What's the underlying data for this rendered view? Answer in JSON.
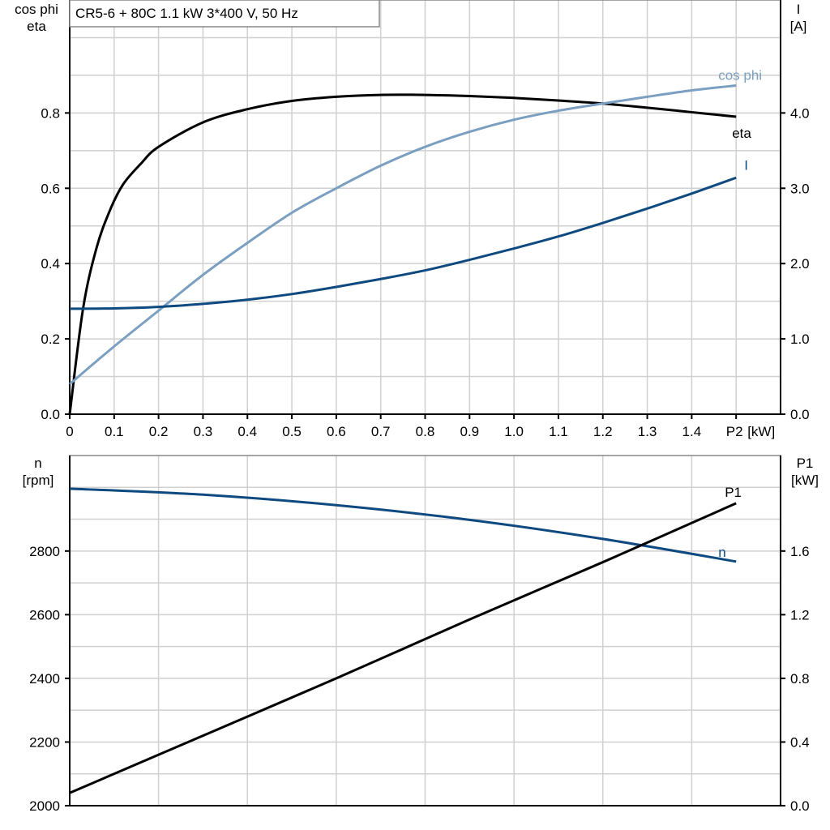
{
  "title": "CR5-6 + 80C   1.1 kW   3*400 V, 50 Hz",
  "colors": {
    "eta": "#000000",
    "cos_phi": "#7a9fc0",
    "I": "#0e4a80",
    "n": "#0e4a80",
    "P1": "#000000",
    "grid": "#d0d0d0"
  },
  "chart_data": [
    {
      "type": "line",
      "title": "CR5-6 + 80C   1.1 kW   3*400 V, 50 Hz",
      "xlabel": "P2 [kW]",
      "x_unit_label": "[kW]",
      "x_last_tick_label": "P2",
      "ylabel_left": [
        "cos phi",
        "eta"
      ],
      "ylabel_right": [
        "I",
        "[A]"
      ],
      "xlim": [
        0,
        1.6
      ],
      "ylim_left": [
        0,
        1.1
      ],
      "ylim_right": [
        0,
        5.5
      ],
      "x_ticks": [
        "0",
        "0.1",
        "0.2",
        "0.3",
        "0.4",
        "0.5",
        "0.6",
        "0.7",
        "0.8",
        "0.9",
        "1.0",
        "1.1",
        "1.2",
        "1.3",
        "1.4"
      ],
      "y_ticks_left": [
        "0.0",
        "0.2",
        "0.4",
        "0.6",
        "0.8"
      ],
      "y_ticks_right": [
        "0.0",
        "1.0",
        "2.0",
        "3.0",
        "4.0"
      ],
      "grid": true,
      "series": [
        {
          "name": "eta",
          "axis": "left",
          "x": [
            0,
            0.03,
            0.06,
            0.09,
            0.12,
            0.16,
            0.2,
            0.3,
            0.4,
            0.5,
            0.6,
            0.7,
            0.8,
            0.9,
            1.0,
            1.1,
            1.2,
            1.3,
            1.4,
            1.5
          ],
          "y": [
            0,
            0.28,
            0.44,
            0.54,
            0.61,
            0.665,
            0.71,
            0.775,
            0.81,
            0.832,
            0.843,
            0.848,
            0.848,
            0.845,
            0.84,
            0.833,
            0.825,
            0.814,
            0.802,
            0.79
          ]
        },
        {
          "name": "cos phi",
          "axis": "left",
          "x": [
            0,
            0.1,
            0.2,
            0.3,
            0.4,
            0.5,
            0.6,
            0.7,
            0.8,
            0.9,
            1.0,
            1.1,
            1.2,
            1.3,
            1.4,
            1.5
          ],
          "y": [
            0.08,
            0.18,
            0.275,
            0.37,
            0.455,
            0.535,
            0.6,
            0.66,
            0.71,
            0.75,
            0.782,
            0.806,
            0.825,
            0.843,
            0.86,
            0.873
          ]
        },
        {
          "name": "I",
          "axis": "right",
          "x": [
            0,
            0.1,
            0.2,
            0.3,
            0.4,
            0.5,
            0.6,
            0.7,
            0.8,
            0.9,
            1.0,
            1.1,
            1.2,
            1.3,
            1.4,
            1.5
          ],
          "y": [
            1.4,
            1.405,
            1.425,
            1.465,
            1.52,
            1.595,
            1.69,
            1.795,
            1.91,
            2.05,
            2.2,
            2.36,
            2.54,
            2.73,
            2.93,
            3.14
          ]
        }
      ]
    },
    {
      "type": "line",
      "ylabel_left": [
        "n",
        "[rpm]"
      ],
      "ylabel_right": [
        "P1",
        "[kW]"
      ],
      "xlim": [
        0,
        1.6
      ],
      "ylim_left": [
        2000,
        3100
      ],
      "ylim_right": [
        0,
        2.2
      ],
      "y_ticks_left": [
        "2000",
        "2200",
        "2400",
        "2600",
        "2800"
      ],
      "y_ticks_right": [
        "0.0",
        "0.4",
        "0.8",
        "1.2",
        "1.6"
      ],
      "grid": true,
      "series": [
        {
          "name": "n",
          "axis": "left",
          "x": [
            0,
            0.3,
            0.6,
            0.9,
            1.2,
            1.5
          ],
          "y": [
            2996,
            2977,
            2944,
            2898,
            2838,
            2767
          ]
        },
        {
          "name": "P1",
          "axis": "right",
          "x": [
            0,
            0.3,
            0.6,
            0.9,
            1.2,
            1.5
          ],
          "y": [
            0.08,
            0.44,
            0.8,
            1.17,
            1.53,
            1.9
          ]
        }
      ]
    }
  ]
}
